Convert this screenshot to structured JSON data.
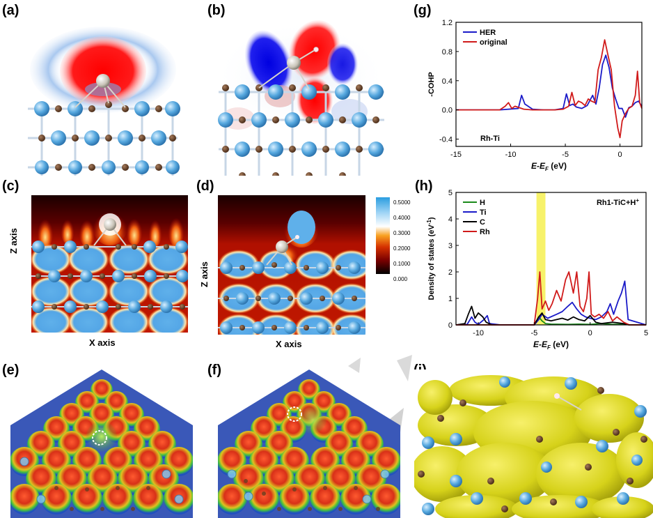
{
  "panels": {
    "a": "(a)",
    "b": "(b)",
    "c": "(c)",
    "d": "(d)",
    "e": "(e)",
    "f": "(f)",
    "g": "(g)",
    "h": "(h)",
    "i": "(i)"
  },
  "map_axes": {
    "c_z": "Z axis",
    "c_x": "X axis",
    "d_z": "Z axis",
    "d_x": "X axis"
  },
  "colorbar": {
    "ticks": [
      "0.5000",
      "0.4000",
      "0.3000",
      "0.2000",
      "0.1000",
      "0.000"
    ],
    "colors": [
      "#000000",
      "#7a0000",
      "#d43000",
      "#f8a020",
      "#ffffff",
      "#9fd4f5",
      "#2a9de0"
    ]
  },
  "chart_data": [
    {
      "id": "g",
      "type": "line",
      "ylabel": "-COHP",
      "xlabel_main": "E-E",
      "xlabel_sub": "F",
      "xlabel_unit": " (eV)",
      "annotation": "Rh-Ti",
      "xlim": [
        -15,
        2
      ],
      "ylim": [
        -0.5,
        1.2
      ],
      "xticks": [
        -15,
        -10,
        -5,
        0
      ],
      "yticks": [
        -0.4,
        0.0,
        0.4,
        0.8,
        1.2
      ],
      "ytick_labels": [
        "-0.4",
        "0.0",
        "0.4",
        "0.8",
        "1.2"
      ],
      "legend_position": "top-left",
      "series": [
        {
          "name": "HER",
          "color": "#1a1ac8",
          "x": [
            -15,
            -11,
            -9.3,
            -9.0,
            -8.7,
            -8.4,
            -8.0,
            -7,
            -6,
            -5.2,
            -4.9,
            -4.6,
            -4.3,
            -4.0,
            -3.5,
            -3.0,
            -2.5,
            -2.2,
            -1.9,
            -1.6,
            -1.3,
            -1.0,
            -0.7,
            -0.4,
            -0.1,
            0.2,
            0.5,
            0.8,
            1.1,
            1.4,
            1.7,
            2.0
          ],
          "y": [
            0,
            0,
            0.02,
            0.2,
            0.08,
            0.05,
            0.01,
            0,
            0,
            0.02,
            0.22,
            0.06,
            0.08,
            0.04,
            0.02,
            0.06,
            0.2,
            0.08,
            0.3,
            0.62,
            0.75,
            0.58,
            0.3,
            0.15,
            0.02,
            0.02,
            -0.1,
            0.03,
            0.05,
            0.1,
            0.12,
            0.05
          ]
        },
        {
          "name": "original",
          "color": "#d01a1a",
          "x": [
            -15,
            -11,
            -10.5,
            -10.2,
            -9.9,
            -9.6,
            -9.2,
            -8.8,
            -8,
            -7,
            -6,
            -5.2,
            -4.7,
            -4.4,
            -4.1,
            -3.8,
            -3.5,
            -3.2,
            -2.9,
            -2.6,
            -2.3,
            -2.0,
            -1.7,
            -1.4,
            -1.1,
            -0.8,
            -0.5,
            -0.2,
            0.0,
            0.2,
            0.5,
            0.8,
            1.1,
            1.4,
            1.6,
            1.8,
            2.0
          ],
          "y": [
            0,
            0,
            0.05,
            0.1,
            0.02,
            0.05,
            0.03,
            0.01,
            0,
            0,
            0,
            0.01,
            0.05,
            0.24,
            0.06,
            0.12,
            0.1,
            0.06,
            0.15,
            0.12,
            0.1,
            0.55,
            0.72,
            0.96,
            0.75,
            0.55,
            0.05,
            -0.25,
            -0.38,
            -0.15,
            -0.05,
            0.02,
            0.05,
            0.2,
            0.53,
            0.1,
            0.02
          ]
        }
      ]
    },
    {
      "id": "h",
      "type": "line",
      "ylabel": "Density of states (eV",
      "ylabel_sup": "-1",
      "ylabel_end": ")",
      "xlabel_main": "E-E",
      "xlabel_sub": "F",
      "xlabel_unit": " (eV)",
      "annotation": "Rh1-TiC+H",
      "annotation_sup": "+",
      "xlim": [
        -12,
        5
      ],
      "ylim": [
        0,
        5
      ],
      "xticks": [
        -10,
        -5,
        0,
        5
      ],
      "yticks": [
        0,
        1,
        2,
        3,
        4,
        5
      ],
      "highlight_band": [
        -4.8,
        -4.0
      ],
      "highlight_color": "#f7f26a",
      "legend_position": "top-left",
      "series": [
        {
          "name": "H",
          "color": "#1a8a1a",
          "x": [
            -12,
            -5,
            -4.6,
            -4.3,
            -4.0,
            -3.5,
            -2,
            -1,
            0,
            1,
            2,
            3,
            3.5,
            5
          ],
          "y": [
            0,
            0,
            0.3,
            0.15,
            0.05,
            0.03,
            0.02,
            0.03,
            0.02,
            0.05,
            0.02,
            0.03,
            0,
            0
          ]
        },
        {
          "name": "Ti",
          "color": "#1a1ac8",
          "x": [
            -12,
            -11,
            -10.6,
            -10.3,
            -10.0,
            -9.5,
            -9.2,
            -9.0,
            -8,
            -5,
            -4.6,
            -4.3,
            -3.8,
            -3.0,
            -2.5,
            -2.0,
            -1.6,
            -1.2,
            -0.8,
            -0.4,
            0,
            0.5,
            1.0,
            1.5,
            1.8,
            2.1,
            2.5,
            2.8,
            3.1,
            3.4,
            5
          ],
          "y": [
            0,
            0.02,
            0.3,
            0.1,
            0.02,
            0.2,
            0.35,
            0.05,
            0,
            0,
            0.2,
            0.4,
            0.25,
            0.4,
            0.5,
            0.7,
            0.85,
            0.6,
            0.4,
            0.3,
            0.25,
            0.2,
            0.3,
            0.5,
            0.8,
            0.4,
            0.9,
            1.2,
            1.65,
            0.2,
            0
          ]
        },
        {
          "name": "C",
          "color": "#000000",
          "x": [
            -12,
            -11.2,
            -10.9,
            -10.6,
            -10.3,
            -10.0,
            -9.6,
            -9.3,
            -8.8,
            -5,
            -4.6,
            -4.3,
            -4.0,
            -3.5,
            -3.0,
            -2.5,
            -2.0,
            -1.5,
            -1.0,
            -0.5,
            0,
            0.5,
            1,
            2,
            3,
            3.5,
            5
          ],
          "y": [
            0,
            0.05,
            0.4,
            0.7,
            0.25,
            0.45,
            0.3,
            0.1,
            0,
            0,
            0.3,
            0.45,
            0.2,
            0.15,
            0.2,
            0.25,
            0.18,
            0.3,
            0.2,
            0.15,
            0.35,
            0.1,
            0.05,
            0.1,
            0.05,
            0,
            0
          ]
        },
        {
          "name": "Rh",
          "color": "#d01a1a",
          "x": [
            -12,
            -5,
            -4.7,
            -4.5,
            -4.3,
            -4.0,
            -3.7,
            -3.4,
            -3.0,
            -2.6,
            -2.2,
            -1.9,
            -1.5,
            -1.2,
            -0.9,
            -0.6,
            -0.3,
            -0.1,
            0.1,
            0.4,
            0.8,
            1.2,
            1.6,
            2.0,
            2.4,
            3.0,
            3.5,
            5
          ],
          "y": [
            0,
            0,
            1.0,
            2.0,
            0.6,
            0.9,
            0.55,
            0.8,
            1.3,
            0.9,
            1.7,
            2.0,
            1.2,
            2.0,
            0.7,
            0.5,
            1.0,
            2.0,
            0.4,
            0.3,
            0.4,
            0.25,
            0.5,
            0.15,
            0.3,
            0.1,
            0,
            0
          ]
        }
      ]
    }
  ]
}
